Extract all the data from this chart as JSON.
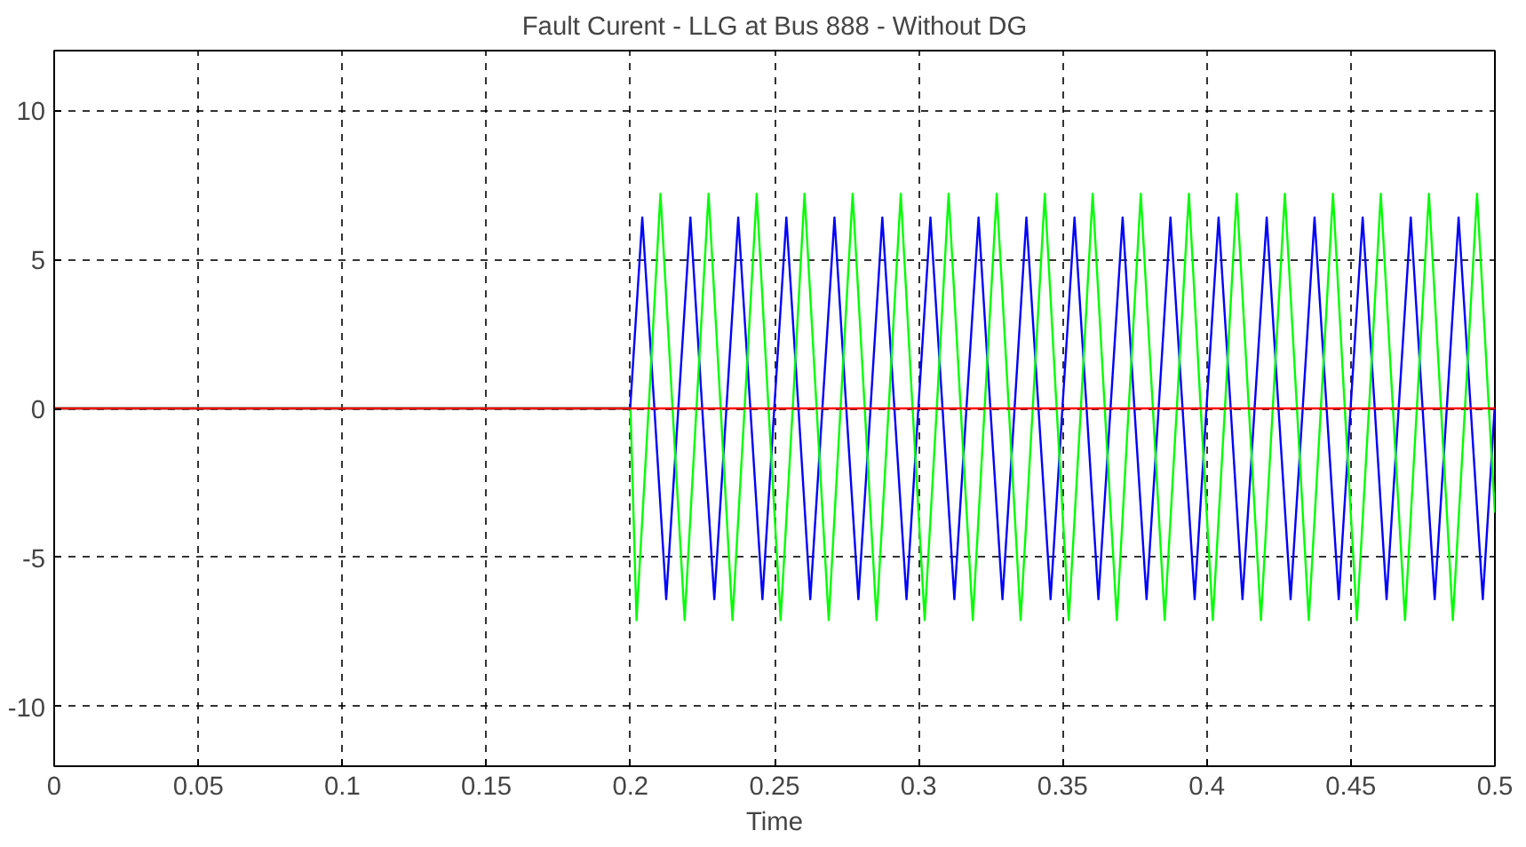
{
  "chart_data": {
    "type": "line",
    "title": "Fault Curent - LLG at Bus 888 - Without DG",
    "xlabel": "Time",
    "xlim": [
      0,
      0.5
    ],
    "xticks": [
      0,
      0.05,
      0.1,
      0.15,
      0.2,
      0.25,
      0.3,
      0.35,
      0.4,
      0.45,
      0.5
    ],
    "ylim": [
      -12,
      12
    ],
    "yticks": [
      -10,
      -5,
      0,
      5,
      10
    ],
    "grid": true,
    "line_style": "solid",
    "series": [
      {
        "color": "#0000ff",
        "x": [
          0,
          0.1999,
          0.2041,
          0.2083,
          0.2124,
          0.2166,
          0.2208,
          0.2249,
          0.2291,
          0.2333,
          0.2374,
          0.2416,
          0.2458,
          0.2499,
          0.2541,
          0.2583,
          0.2624,
          0.2666,
          0.2708,
          0.2749,
          0.2791,
          0.2833,
          0.2874,
          0.2916,
          0.2958,
          0.2999,
          0.3041,
          0.3083,
          0.3124,
          0.3166,
          0.3208,
          0.3249,
          0.3291,
          0.3333,
          0.3374,
          0.3416,
          0.3458,
          0.3499,
          0.3541,
          0.3583,
          0.3624,
          0.3666,
          0.3708,
          0.3749,
          0.3791,
          0.3833,
          0.3874,
          0.3916,
          0.3958,
          0.3999,
          0.4041,
          0.4083,
          0.4124,
          0.4166,
          0.4208,
          0.4249,
          0.4291,
          0.4333,
          0.4374,
          0.4416,
          0.4458,
          0.4499,
          0.4541,
          0.4583,
          0.4624,
          0.4666,
          0.4708,
          0.4749,
          0.4791,
          0.4833,
          0.4874,
          0.4916,
          0.4958,
          0.4999
        ],
        "values": [
          0,
          0,
          6.4,
          0,
          -6.4,
          0,
          6.4,
          0,
          -6.4,
          0,
          6.4,
          0,
          -6.4,
          0,
          6.4,
          0,
          -6.4,
          0,
          6.4,
          0,
          -6.4,
          0,
          6.4,
          0,
          -6.4,
          0,
          6.4,
          0,
          -6.4,
          0,
          6.4,
          0,
          -6.4,
          0,
          6.4,
          0,
          -6.4,
          0,
          6.4,
          0,
          -6.4,
          0,
          6.4,
          0,
          -6.4,
          0,
          6.4,
          0,
          -6.4,
          0,
          6.4,
          0,
          -6.4,
          0,
          6.4,
          0,
          -6.4,
          0,
          6.4,
          0,
          -6.4,
          0,
          6.4,
          0,
          -6.4,
          0,
          6.4,
          0,
          -6.4,
          0,
          6.4,
          0,
          -6.4,
          0
        ]
      },
      {
        "color": "#00ff00",
        "x": [
          0,
          0.2,
          0.2021,
          0.2063,
          0.2104,
          0.2146,
          0.2188,
          0.2229,
          0.2271,
          0.2313,
          0.2354,
          0.2396,
          0.2438,
          0.2479,
          0.2521,
          0.2563,
          0.2604,
          0.2646,
          0.2688,
          0.2729,
          0.2771,
          0.2813,
          0.2854,
          0.2896,
          0.2938,
          0.2979,
          0.3021,
          0.3063,
          0.3104,
          0.3146,
          0.3188,
          0.3229,
          0.3271,
          0.3313,
          0.3354,
          0.3396,
          0.3438,
          0.3479,
          0.3521,
          0.3563,
          0.3604,
          0.3646,
          0.3688,
          0.3729,
          0.3771,
          0.3813,
          0.3854,
          0.3896,
          0.3938,
          0.3979,
          0.4021,
          0.4063,
          0.4104,
          0.4146,
          0.4188,
          0.4229,
          0.4271,
          0.4313,
          0.4354,
          0.4396,
          0.4438,
          0.4479,
          0.4521,
          0.4563,
          0.4604,
          0.4646,
          0.4688,
          0.4729,
          0.4771,
          0.4813,
          0.4854,
          0.4896,
          0.4938,
          0.4979,
          0.5
        ],
        "values": [
          0,
          0,
          -7.1,
          0,
          7.2,
          0,
          -7.1,
          0,
          7.2,
          0,
          -7.1,
          0,
          7.2,
          0,
          -7.1,
          0,
          7.2,
          0,
          -7.1,
          0,
          7.2,
          0,
          -7.1,
          0,
          7.2,
          0,
          -7.1,
          0,
          7.2,
          0,
          -7.1,
          0,
          7.2,
          0,
          -7.1,
          0,
          7.2,
          0,
          -7.1,
          0,
          7.2,
          0,
          -7.1,
          0,
          7.2,
          0,
          -7.1,
          0,
          7.2,
          0,
          -7.1,
          0,
          7.2,
          0,
          -7.1,
          0,
          7.2,
          0,
          -7.1,
          0,
          7.2,
          0,
          -7.1,
          0,
          7.2,
          0,
          -7.1,
          0,
          7.2,
          0,
          -7.1,
          0,
          7.2,
          0,
          -3.5
        ]
      },
      {
        "color": "#ff0000",
        "x": [
          0,
          0.2,
          0.5
        ],
        "values": [
          0,
          0,
          0
        ]
      }
    ]
  }
}
